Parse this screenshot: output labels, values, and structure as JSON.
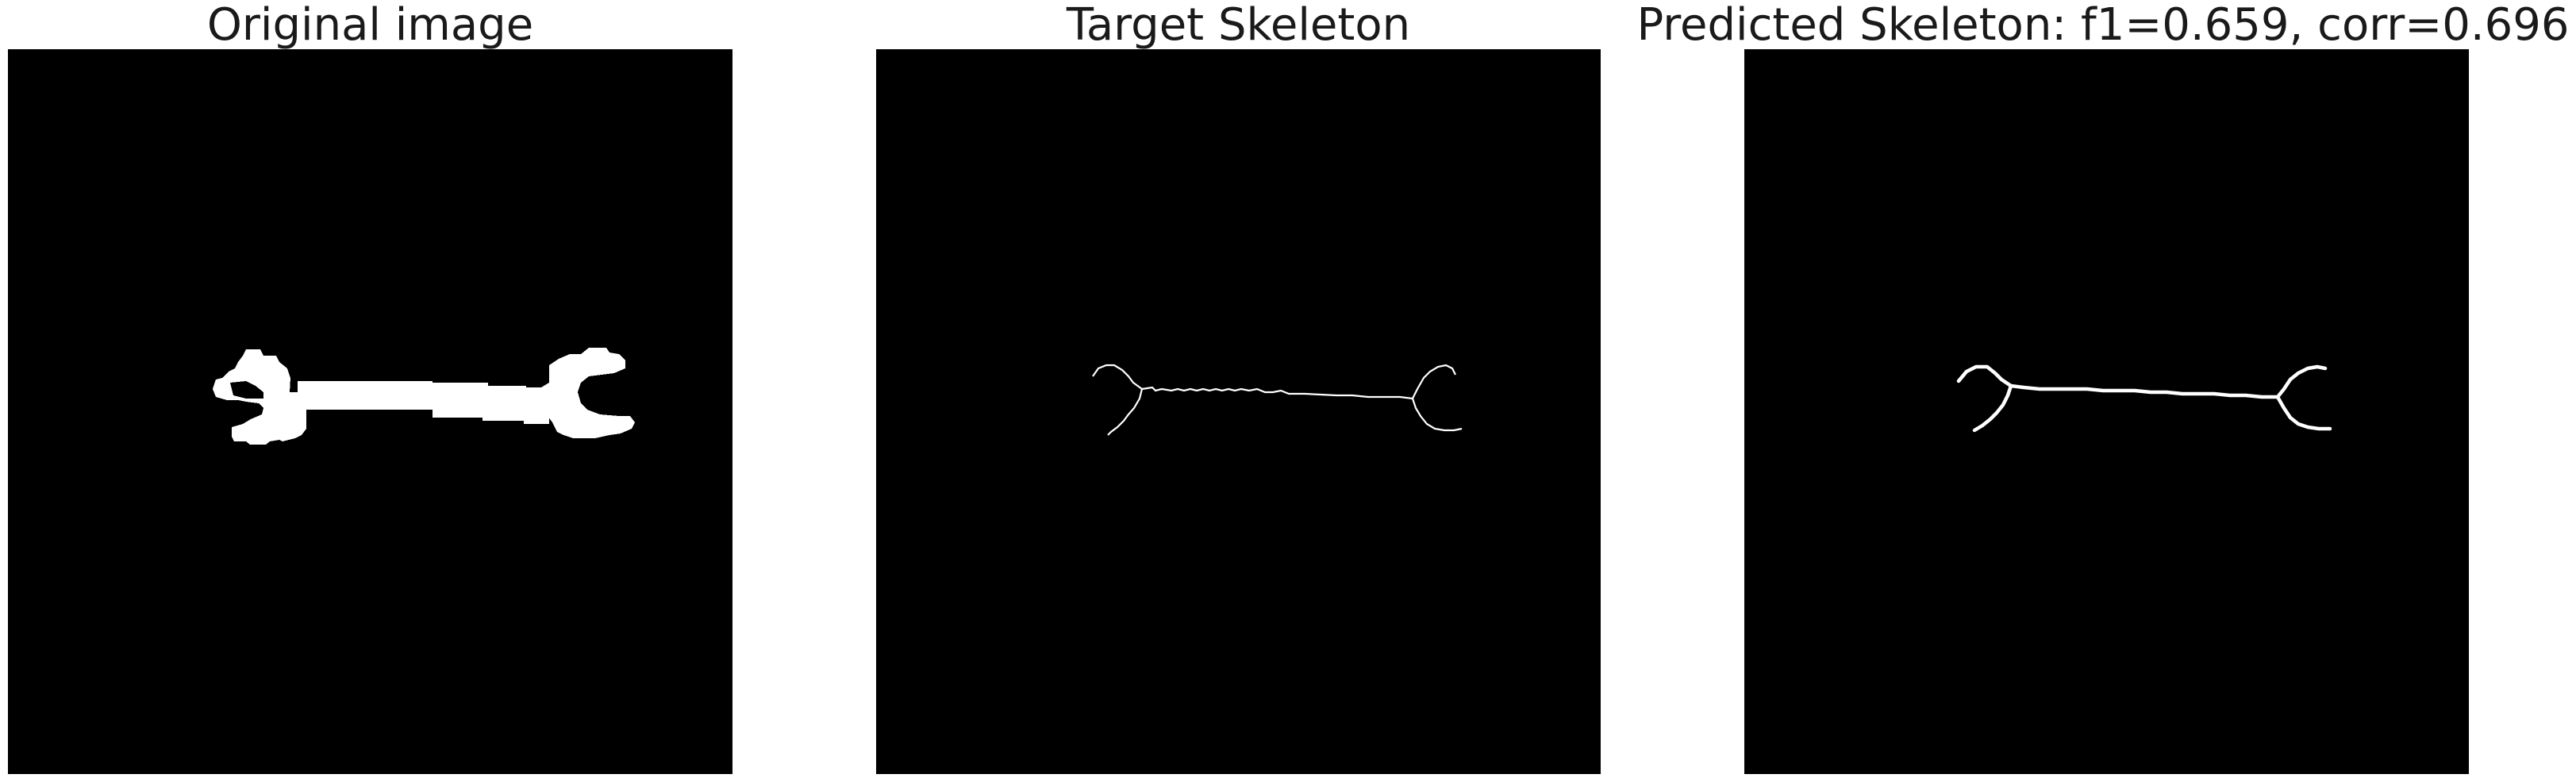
{
  "figure": {
    "panels": [
      {
        "title": "Original image",
        "content": "wrench-silhouette"
      },
      {
        "title": "Target Skeleton",
        "content": "wrench-skeleton-thin"
      },
      {
        "title": "Predicted Skeleton: f1=0.659, corr=0.696",
        "content": "wrench-skeleton-predicted"
      }
    ],
    "colors": {
      "background": "#ffffff",
      "panel_fill": "#000000",
      "foreground": "#ffffff",
      "title_text": "#1a1a1a"
    }
  }
}
